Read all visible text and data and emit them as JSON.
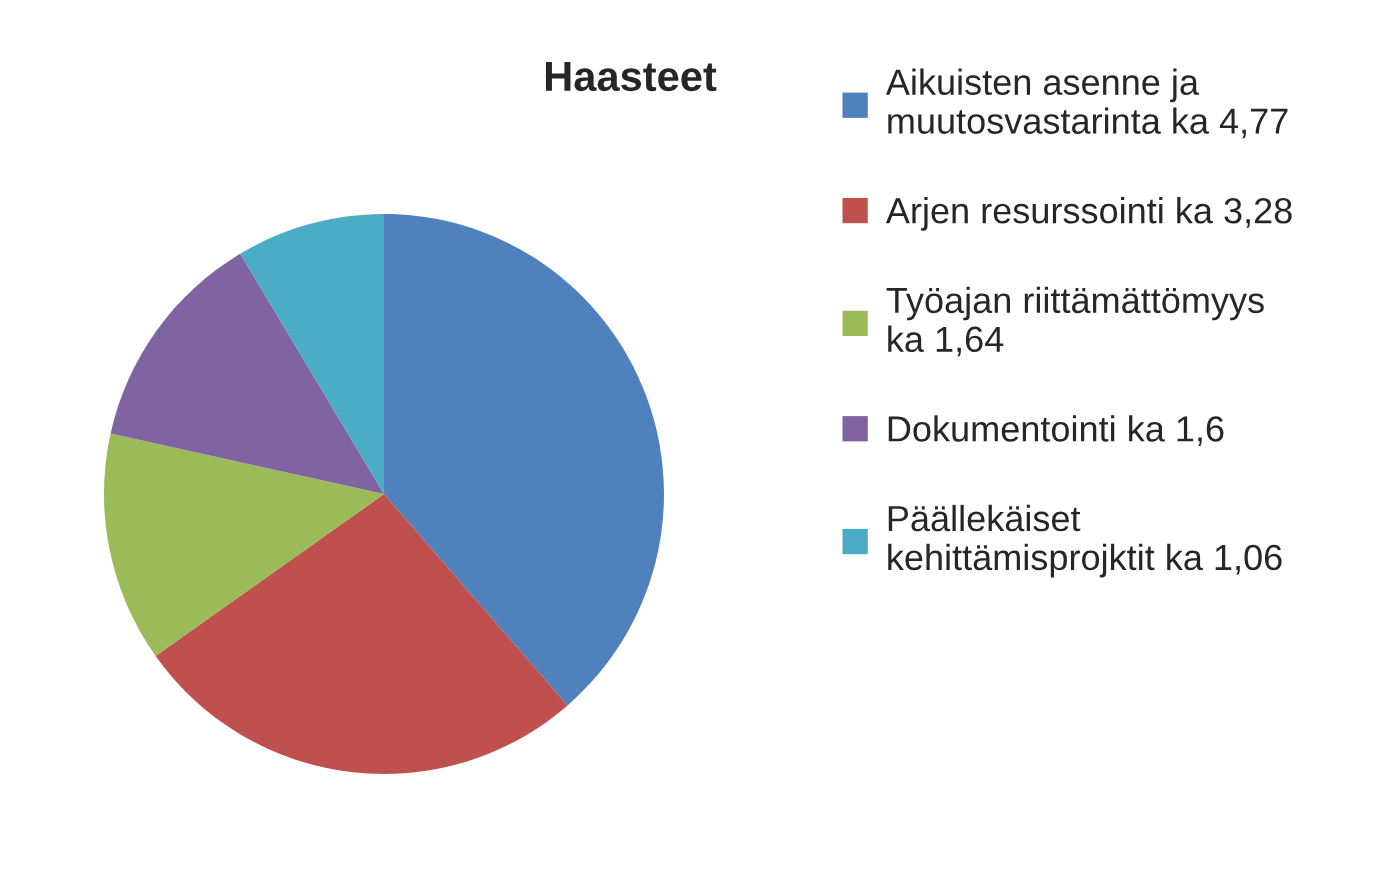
{
  "chart_data": {
    "type": "pie",
    "title": "Haasteet",
    "categories": [
      "Aikuisten asenne ja\nmuutosvastarinta ka 4,77",
      "Arjen resurssointi ka 3,28",
      "Työajan riittämättömyys\nka 1,64",
      "Dokumentointi ka 1,6",
      "Päällekäiset\nkehittämisprojktit ka 1,06"
    ],
    "values": [
      4.77,
      3.28,
      1.64,
      1.6,
      1.06
    ],
    "colors": [
      "#4f81bd",
      "#c0504d",
      "#9bbb59",
      "#8064a2",
      "#4bacc6"
    ],
    "legend": "right"
  }
}
